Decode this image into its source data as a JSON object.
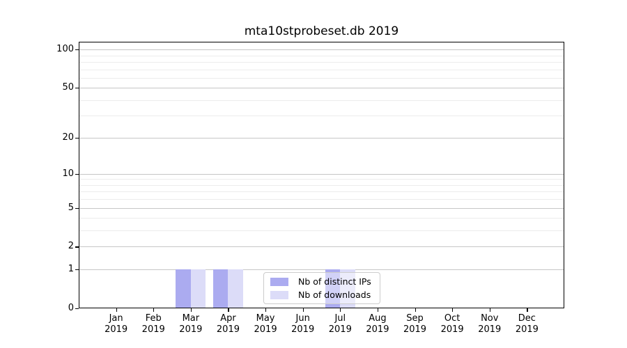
{
  "chart_data": {
    "type": "bar",
    "title": "mta10stprobeset.db 2019",
    "categories": [
      "Jan",
      "Feb",
      "Mar",
      "Apr",
      "May",
      "Jun",
      "Jul",
      "Aug",
      "Sep",
      "Oct",
      "Nov",
      "Dec"
    ],
    "year_label": "2019",
    "series": [
      {
        "name": "Nb of distinct IPs",
        "color": "#ababf0",
        "values": [
          0,
          0,
          1,
          1,
          0,
          0,
          1,
          0,
          0,
          0,
          0,
          0
        ]
      },
      {
        "name": "Nb of downloads",
        "color": "#dcdcf8",
        "values": [
          0,
          0,
          1,
          1,
          0,
          0,
          1,
          0,
          0,
          0,
          0,
          0
        ]
      }
    ],
    "xlabel": "",
    "ylabel": "",
    "yscale": "log1p",
    "yticks": [
      0,
      1,
      2,
      5,
      10,
      20,
      50,
      100
    ],
    "yminor_ticks": [
      3,
      4,
      6,
      7,
      8,
      9,
      30,
      40,
      60,
      70,
      80,
      90
    ],
    "ylim": [
      0,
      115
    ],
    "grid": true,
    "legend_position": "lower-center",
    "colors": {
      "major_grid": "#c6c6c6",
      "minor_grid": "#ececec",
      "spine": "#000000",
      "background": "#ffffff",
      "text": "#000000"
    }
  }
}
